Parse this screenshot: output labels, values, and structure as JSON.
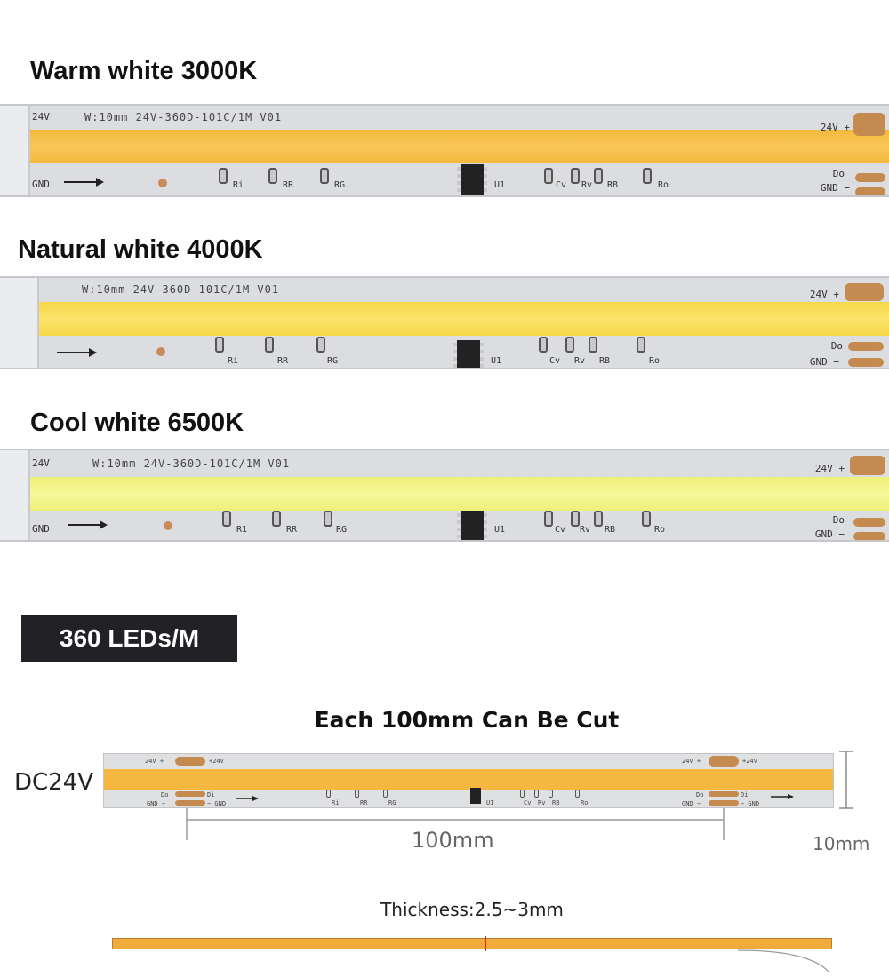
{
  "strips": [
    {
      "title": "Warm white 3000K",
      "spec": "W:10mm 24V-360D-101C/1M V01",
      "left_voltage": "24V",
      "left_gnd": "GND",
      "right_voltage": "24V +",
      "right_do": "Do",
      "right_gnd": "GND −",
      "chip_label": "U1",
      "resistor_labels": [
        "Ri",
        "RR",
        "RG",
        "Cv",
        "Rv",
        "RB",
        "Ro"
      ],
      "led_color": "#f7c04a"
    },
    {
      "title": "Natural white 4000K",
      "spec": "W:10mm 24V-360D-101C/1M V01",
      "left_voltage": "",
      "left_gnd": "",
      "right_voltage": "24V +",
      "right_do": "Do",
      "right_gnd": "GND −",
      "chip_label": "U1",
      "resistor_labels": [
        "Ri",
        "RR",
        "RG",
        "Cv",
        "Rv",
        "RB",
        "Ro"
      ],
      "led_color": "#f9de5a"
    },
    {
      "title": "Cool white 6500K",
      "spec": "W:10mm 24V-360D-101C/1M V01",
      "left_voltage": "24V",
      "left_gnd": "GND",
      "right_voltage": "24V +",
      "right_do": "Do",
      "right_gnd": "GND −",
      "chip_label": "U1",
      "resistor_labels": [
        "R1",
        "RR",
        "RG",
        "Cv",
        "Rv",
        "RB",
        "Ro"
      ],
      "led_color": "#f3f38a"
    }
  ],
  "badge": "360 LEDs/M",
  "cut_title": "Each 100mm Can Be Cut",
  "voltage_label": "DC24V",
  "length_label": "100mm",
  "width_label": "10mm",
  "thickness_label": "Thickness:2.5~3mm",
  "small_strip": {
    "pad_top_left": "24V +",
    "pad_top_right": "+24V",
    "pad_do": "Do",
    "pad_di": "Di",
    "pad_gnd_left": "GND −",
    "pad_gnd_right": "− GND",
    "resistor_labels": [
      "Ri",
      "RR",
      "RG",
      "Cv",
      "Rv",
      "RB",
      "Ro"
    ],
    "chip_label": "U1"
  },
  "colors": {
    "pcb": "#dcdde0",
    "copper_pad": "#c58a4f",
    "warm_led": "#f7c04a",
    "badge_bg": "#222226"
  }
}
